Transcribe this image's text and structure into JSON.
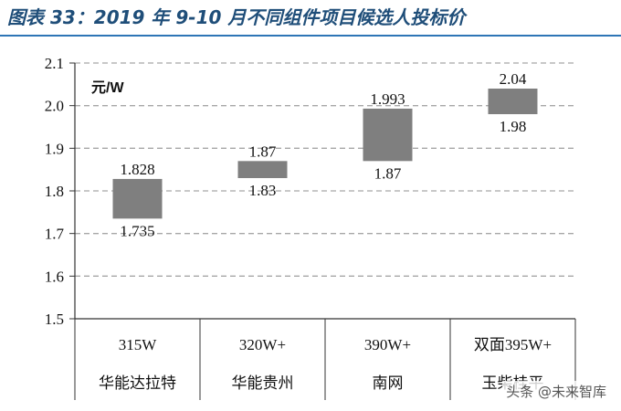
{
  "header": {
    "title": "图表 33：2019 年 9-10 月不同组件项目候选人投标价"
  },
  "watermark": "头条 @未来智库",
  "chart_data": {
    "type": "bar",
    "subtype": "floating-range",
    "title": "图表 33：2019 年 9-10 月不同组件项目候选人投标价",
    "unit_label": "元/W",
    "ylim": [
      1.5,
      2.1
    ],
    "yticks": [
      "1.5",
      "1.6",
      "1.7",
      "1.8",
      "1.9",
      "2.0",
      "2.1"
    ],
    "grid": true,
    "bar_color": "#7f7f7f",
    "categories": [
      {
        "line1": "315W",
        "line2": "华能达拉特"
      },
      {
        "line1": "320W+",
        "line2": "华能贵州"
      },
      {
        "line1": "390W+",
        "line2": "南网"
      },
      {
        "line1": "双面395W+",
        "line2": "玉柴桂平"
      }
    ],
    "ranges": [
      {
        "high": 1.828,
        "low": 1.735,
        "high_label": "1.828",
        "low_label": "1.735"
      },
      {
        "high": 1.87,
        "low": 1.83,
        "high_label": "1.87",
        "low_label": "1.83"
      },
      {
        "high": 1.993,
        "low": 1.87,
        "high_label": "1.993",
        "low_label": "1.87"
      },
      {
        "high": 2.04,
        "low": 1.98,
        "high_label": "2.04",
        "low_label": "1.98"
      }
    ]
  }
}
